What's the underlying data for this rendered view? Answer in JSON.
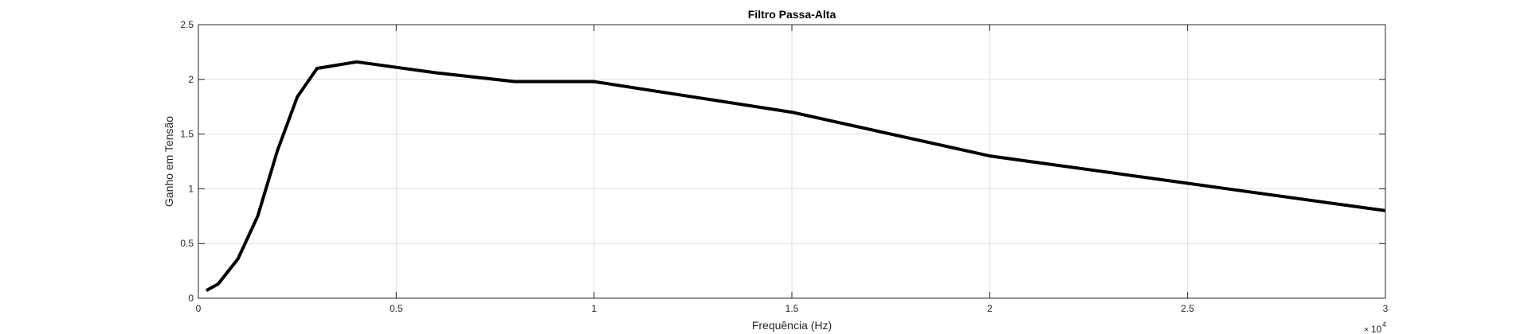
{
  "chart_data": {
    "type": "line",
    "title": "Filtro Passa-Alta",
    "xlabel": "Frequência (Hz)",
    "ylabel": "Ganho em Tensão",
    "xlim": [
      0,
      30000
    ],
    "ylim": [
      0,
      2.5
    ],
    "grid": true,
    "x_ticks": [
      0,
      5000,
      10000,
      15000,
      20000,
      25000,
      30000
    ],
    "x_tick_labels": [
      "0",
      "0.5",
      "1",
      "1.5",
      "2",
      "2.5",
      "3"
    ],
    "x_exponent_prefix": "×",
    "x_exponent_base": "10",
    "x_exponent_power": "4",
    "y_ticks": [
      0,
      0.5,
      1,
      1.5,
      2,
      2.5
    ],
    "y_tick_labels": [
      "0",
      "0.5",
      "1",
      "1.5",
      "2",
      "2.5"
    ],
    "series": [
      {
        "color": "#000000",
        "x": [
          200,
          500,
          1000,
          1500,
          2000,
          2500,
          3000,
          4000,
          6000,
          8000,
          10000,
          15000,
          20000,
          25000,
          30000
        ],
        "y": [
          0.07,
          0.13,
          0.36,
          0.75,
          1.35,
          1.84,
          2.1,
          2.16,
          2.06,
          1.98,
          1.98,
          1.7,
          1.3,
          1.05,
          0.8
        ]
      }
    ]
  }
}
